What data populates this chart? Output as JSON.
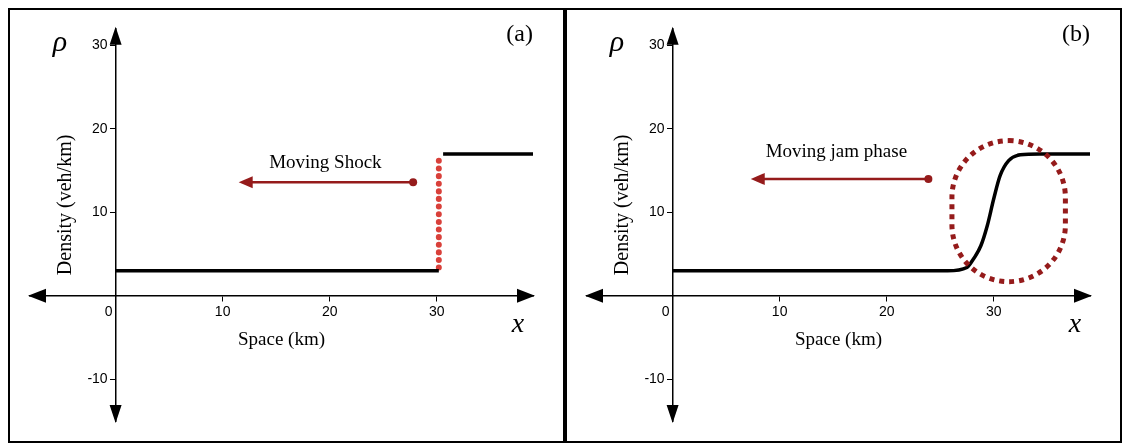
{
  "chart_data": [
    {
      "type": "line",
      "title": "(a)",
      "xlabel": "Space (km)",
      "ylabel": "Density (veh/km)",
      "xlim": [
        -8,
        39
      ],
      "ylim": [
        -15,
        32
      ],
      "xticks": [
        0,
        10,
        20,
        30
      ],
      "yticks": [
        -10,
        {
          "value": 0,
          "label": null
        },
        10,
        20,
        30
      ],
      "marker": "none",
      "annotations": [
        "ρ",
        "x",
        "Moving Shock"
      ],
      "series": [
        {
          "color": "#000000",
          "line_style": "solid",
          "x": [
            0,
            30.2,
            30.4,
            30.6,
            39
          ],
          "values": [
            3,
            3,
            null,
            17,
            17
          ]
        },
        {
          "color": "#d9403a",
          "line_style": "dotted",
          "x": [
            30.2,
            30.2
          ],
          "values": [
            3.4,
            16.6
          ]
        }
      ]
    },
    {
      "type": "line",
      "title": "(b)",
      "xlabel": "Space (km)",
      "ylabel": "Density (veh/km)",
      "xlim": [
        -8,
        39
      ],
      "ylim": [
        -15,
        32
      ],
      "xticks": [
        0,
        10,
        20,
        30
      ],
      "yticks": [
        -10,
        {
          "value": 0,
          "label": null
        },
        10,
        20,
        30
      ],
      "marker": "none",
      "annotations": [
        "ρ",
        "x",
        "Moving jam phase"
      ],
      "series": [
        {
          "color": "#000000",
          "line_style": "solid",
          "x": [
            0,
            25.7,
            27.5,
            28.0,
            28.8,
            29.4,
            30.0,
            30.6,
            31.4,
            32.5,
            34.3,
            39
          ],
          "values": [
            3,
            3,
            3.4,
            4.2,
            6,
            8.4,
            11.6,
            14.4,
            16.2,
            16.9,
            17,
            17
          ]
        }
      ]
    }
  ]
}
